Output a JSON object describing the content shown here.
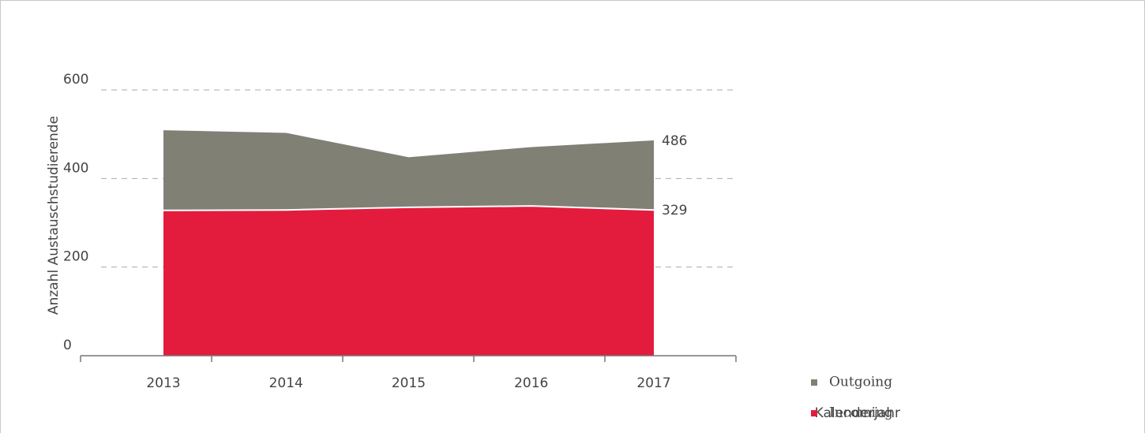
{
  "chart_data": {
    "type": "stacked_area",
    "categories": [
      "2013",
      "2014",
      "2015",
      "2016",
      "2017"
    ],
    "series": [
      {
        "name": "Incoming",
        "color": "#e31c3d",
        "values": [
          328,
          329,
          335,
          338,
          329
        ]
      },
      {
        "name": "Outgoing",
        "color": "#808075",
        "values": [
          181,
          174,
          113,
          133,
          157
        ]
      }
    ],
    "ylim": [
      0,
      600
    ],
    "yticks": [
      0,
      200,
      400,
      600
    ],
    "grid": true,
    "y_label": "Anzahl Austauschstudierende",
    "x_label": "Kalenderjahr",
    "annotations": [
      {
        "text": "486",
        "series": 1,
        "index": 4
      },
      {
        "text": "329",
        "series": 0,
        "index": 4
      }
    ],
    "legend": "right"
  }
}
